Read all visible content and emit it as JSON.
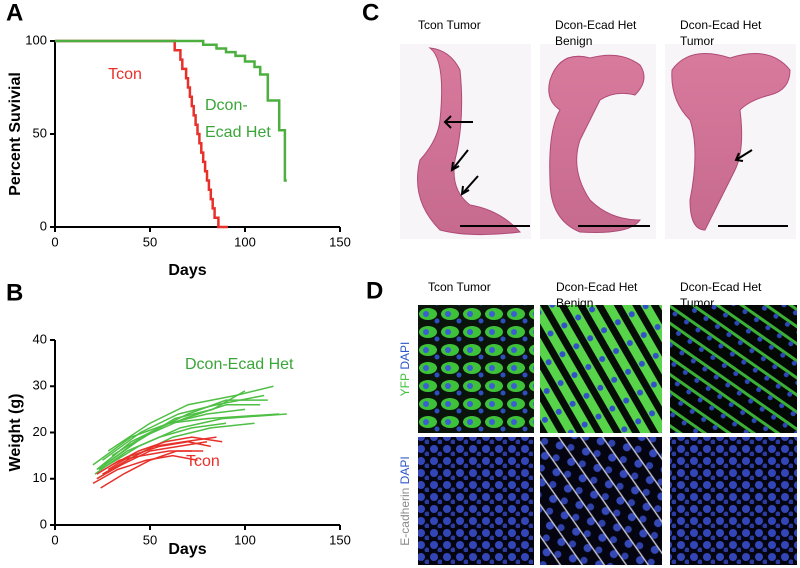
{
  "panels": {
    "a": "A",
    "b": "B",
    "c": "C",
    "d": "D"
  },
  "chart_data": [
    {
      "type": "step",
      "xlabel": "Days",
      "ylabel": "Percent Suvivial",
      "xlim": [
        0,
        150
      ],
      "xticks": [
        0,
        50,
        100,
        150
      ],
      "ylim": [
        0,
        100
      ],
      "yticks": [
        0,
        50,
        100
      ],
      "annotations": [
        {
          "lines": [
            "Tcon"
          ],
          "color": "#e8302a"
        },
        {
          "lines": [
            "Dcon-",
            "Ecad Het"
          ],
          "color": "#3aa639"
        }
      ],
      "series": [
        {
          "color": "#e8302a",
          "x": [
            0,
            63,
            66,
            67,
            69,
            70,
            71,
            72,
            73,
            74,
            75,
            76,
            77,
            78,
            79,
            80,
            81,
            82,
            83,
            84,
            86,
            91
          ],
          "values": [
            100,
            95,
            90,
            85,
            80,
            75,
            70,
            65,
            60,
            55,
            50,
            45,
            40,
            35,
            30,
            25,
            20,
            15,
            10,
            5,
            0,
            0
          ]
        },
        {
          "color": "#4caf3f",
          "x": [
            0,
            78,
            85,
            90,
            95,
            100,
            105,
            108,
            112,
            118,
            121,
            122
          ],
          "values": [
            100,
            98,
            96,
            94,
            92,
            89,
            86,
            82,
            68,
            52,
            25,
            25
          ]
        }
      ]
    },
    {
      "type": "line",
      "xlabel": "Days",
      "ylabel": "Weight (g)",
      "xlim": [
        0,
        150
      ],
      "xticks": [
        0,
        50,
        100,
        150
      ],
      "ylim": [
        0,
        40
      ],
      "yticks": [
        0,
        10,
        20,
        30,
        40
      ],
      "annotations": [
        {
          "lines": [
            "Dcon-Ecad Het"
          ],
          "color": "#3aa639"
        },
        {
          "lines": [
            "Tcon"
          ],
          "color": "#e8302a"
        }
      ],
      "series": [
        {
          "color": "#4fbf45",
          "x": [
            22,
            40,
            60,
            80,
            100
          ],
          "values": [
            12,
            18,
            22,
            24,
            25
          ]
        },
        {
          "color": "#4fbf45",
          "x": [
            25,
            45,
            65,
            85,
            110
          ],
          "values": [
            14,
            20,
            24,
            26,
            28
          ]
        },
        {
          "color": "#4fbf45",
          "x": [
            20,
            40,
            60,
            80,
            118
          ],
          "values": [
            13,
            19,
            22,
            23,
            24
          ]
        },
        {
          "color": "#4fbf45",
          "x": [
            28,
            50,
            70,
            95,
            115
          ],
          "values": [
            16,
            22,
            26,
            28,
            30
          ]
        },
        {
          "color": "#4fbf45",
          "x": [
            22,
            42,
            62,
            82,
            105
          ],
          "values": [
            10,
            15,
            19,
            21,
            22
          ]
        },
        {
          "color": "#4fbf45",
          "x": [
            24,
            44,
            66,
            88,
            122
          ],
          "values": [
            12,
            17,
            21,
            23,
            24
          ]
        },
        {
          "color": "#4fbf45",
          "x": [
            30,
            50,
            70,
            90,
            112
          ],
          "values": [
            15,
            20,
            24,
            27,
            27
          ]
        },
        {
          "color": "#4fbf45",
          "x": [
            21,
            38,
            55,
            72,
            90
          ],
          "values": [
            11,
            16,
            19,
            21,
            22
          ]
        },
        {
          "color": "#4fbf45",
          "x": [
            26,
            46,
            68,
            90,
            108
          ],
          "values": [
            13,
            19,
            23,
            26,
            26
          ]
        },
        {
          "color": "#4fbf45",
          "x": [
            23,
            43,
            63,
            83,
            100
          ],
          "values": [
            12,
            18,
            23,
            25,
            29
          ]
        },
        {
          "color": "#e8302a",
          "x": [
            22,
            35,
            50,
            65,
            80
          ],
          "values": [
            10,
            13,
            16,
            17,
            18
          ]
        },
        {
          "color": "#e8302a",
          "x": [
            25,
            38,
            52,
            68,
            85
          ],
          "values": [
            11,
            14,
            17,
            18,
            19
          ]
        },
        {
          "color": "#e8302a",
          "x": [
            20,
            33,
            48,
            62,
            75
          ],
          "values": [
            9,
            12,
            14,
            15,
            14
          ]
        },
        {
          "color": "#e8302a",
          "x": [
            28,
            40,
            55,
            70,
            82
          ],
          "values": [
            12,
            15,
            17,
            18,
            17
          ]
        },
        {
          "color": "#e8302a",
          "x": [
            24,
            36,
            50,
            64,
            78
          ],
          "values": [
            8,
            11,
            14,
            16,
            16
          ]
        },
        {
          "color": "#e8302a",
          "x": [
            30,
            44,
            58,
            72,
            88
          ],
          "values": [
            13,
            16,
            18,
            19,
            18
          ]
        },
        {
          "color": "#e8302a",
          "x": [
            22,
            34,
            46,
            60,
            72
          ],
          "values": [
            11,
            14,
            15,
            16,
            16
          ]
        }
      ]
    }
  ],
  "histology": {
    "columns": [
      [
        "Tcon Tumor"
      ],
      [
        "Dcon-Ecad Het",
        "Benign"
      ],
      [
        "Dcon-Ecad Het",
        "Tumor"
      ]
    ]
  },
  "immunofluorescence": {
    "columns": [
      [
        "Tcon Tumor"
      ],
      [
        "Dcon-Ecad Het",
        "Benign"
      ],
      [
        "Dcon-Ecad Het",
        "Tumor"
      ]
    ],
    "rows": [
      [
        "YFP",
        "DAPI"
      ],
      [
        "E-cadherin",
        "DAPI"
      ]
    ]
  }
}
